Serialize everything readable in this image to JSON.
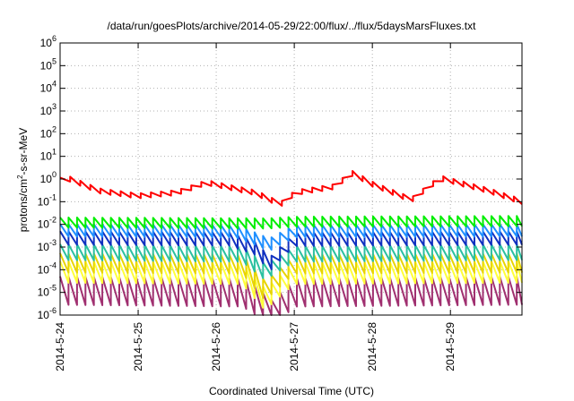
{
  "chart_data": {
    "type": "line",
    "title": "/data/run/goesPlots/archive/2014-05-29/22:00/flux/../flux/5daysMarsFluxes.txt",
    "xlabel": "Coordinated Universal Time (UTC)",
    "ylabel": "protons/cm2-s-sr-MeV",
    "ylabel_parts": [
      "protons/cm",
      "2",
      "-s-sr-MeV"
    ],
    "y_scale": "log",
    "ylim": [
      1e-06,
      1000000.0
    ],
    "y_ticks": [
      {
        "base": "10",
        "exp": "6"
      },
      {
        "base": "10",
        "exp": "5"
      },
      {
        "base": "10",
        "exp": "4"
      },
      {
        "base": "10",
        "exp": "3"
      },
      {
        "base": "10",
        "exp": "2"
      },
      {
        "base": "10",
        "exp": "1"
      },
      {
        "base": "10",
        "exp": "0"
      },
      {
        "base": "10",
        "exp": "-1"
      },
      {
        "base": "10",
        "exp": "-2"
      },
      {
        "base": "10",
        "exp": "-3"
      },
      {
        "base": "10",
        "exp": "-4"
      },
      {
        "base": "10",
        "exp": "-5"
      },
      {
        "base": "10",
        "exp": "-6"
      }
    ],
    "xlim": [
      "2014-05-24 00:00",
      "2014-05-29 22:00"
    ],
    "x_ticks": [
      "2014-5-24",
      "2014-5-25",
      "2014-5-26",
      "2014-5-27",
      "2014-5-28",
      "2014-5-29"
    ],
    "grid": true,
    "series": [
      {
        "color": "#ff0000",
        "period_hours": 3.1,
        "anchors": [
          [
            "2014-05-24 00:00",
            0.9
          ],
          [
            "2014-05-24 03:00",
            1.0
          ],
          [
            "2014-05-24 12:00",
            0.3
          ],
          [
            "2014-05-25 00:00",
            0.18
          ],
          [
            "2014-05-25 12:00",
            0.25
          ],
          [
            "2014-05-25 21:00",
            0.7
          ],
          [
            "2014-05-26 12:00",
            0.25
          ],
          [
            "2014-05-26 18:00",
            0.1
          ],
          [
            "2014-05-26 21:00",
            0.08
          ],
          [
            "2014-05-27 00:00",
            0.25
          ],
          [
            "2014-05-27 12:00",
            0.45
          ],
          [
            "2014-05-27 18:00",
            1.8
          ],
          [
            "2014-05-28 00:00",
            0.6
          ],
          [
            "2014-05-28 12:00",
            0.12
          ],
          [
            "2014-05-28 21:00",
            1.1
          ],
          [
            "2014-05-29 12:00",
            0.3
          ],
          [
            "2014-05-29 22:00",
            0.1
          ]
        ],
        "sawtooth_amplitude": 0.22
      },
      {
        "color": "#00ee00",
        "period_hours": 2.6,
        "anchors": [
          [
            "2014-05-24 00:00",
            0.012
          ],
          [
            "2014-05-26 16:00",
            0.011
          ],
          [
            "2014-05-27 00:00",
            0.013
          ],
          [
            "2014-05-29 22:00",
            0.014
          ]
        ],
        "sawtooth_amplitude": 0.45
      },
      {
        "color": "#1f8fff",
        "period_hours": 2.6,
        "anchors": [
          [
            "2014-05-24 00:00",
            0.0055
          ],
          [
            "2014-05-26 06:00",
            0.005
          ],
          [
            "2014-05-26 14:00",
            0.0018
          ],
          [
            "2014-05-26 16:00",
            0.0012
          ],
          [
            "2014-05-27 00:00",
            0.005
          ],
          [
            "2014-05-29 22:00",
            0.0055
          ]
        ],
        "sawtooth_amplitude": 0.55
      },
      {
        "color": "#1030c0",
        "period_hours": 2.6,
        "anchors": [
          [
            "2014-05-24 00:00",
            0.0025
          ],
          [
            "2014-05-26 04:00",
            0.0023
          ],
          [
            "2014-05-26 12:00",
            0.0009
          ],
          [
            "2014-05-26 15:00",
            0.0003
          ],
          [
            "2014-05-26 16:00",
            0.00015
          ],
          [
            "2014-05-27 00:00",
            0.0022
          ],
          [
            "2014-05-29 22:00",
            0.0025
          ]
        ],
        "sawtooth_amplitude": 0.6
      },
      {
        "color": "#2bc0a0",
        "period_hours": 2.6,
        "anchors": [
          [
            "2014-05-24 00:00",
            0.0006
          ],
          [
            "2014-05-26 08:00",
            0.0005
          ],
          [
            "2014-05-26 15:00",
            8e-05
          ],
          [
            "2014-05-27 00:00",
            0.0005
          ],
          [
            "2014-05-29 22:00",
            0.0006
          ]
        ],
        "sawtooth_amplitude": 0.7
      },
      {
        "color": "#e8d400",
        "period_hours": 2.6,
        "anchors": [
          [
            "2014-05-24 00:00",
            0.0002
          ],
          [
            "2014-05-26 08:00",
            0.00018
          ],
          [
            "2014-05-26 15:00",
            1.2e-05
          ],
          [
            "2014-05-27 00:00",
            0.00018
          ],
          [
            "2014-05-29 22:00",
            0.0002
          ]
        ],
        "sawtooth_amplitude": 0.85
      },
      {
        "color": "#ffff3a",
        "period_hours": 2.6,
        "anchors": [
          [
            "2014-05-24 00:00",
            8e-05
          ],
          [
            "2014-05-26 08:00",
            7e-05
          ],
          [
            "2014-05-26 15:00",
            5e-06
          ],
          [
            "2014-05-27 00:00",
            7e-05
          ],
          [
            "2014-05-29 22:00",
            8e-05
          ]
        ],
        "sawtooth_amplitude": 0.95
      },
      {
        "color": "#a03070",
        "period_hours": 2.6,
        "anchors": [
          [
            "2014-05-24 00:00",
            1.2e-05
          ],
          [
            "2014-05-26 08:00",
            1e-05
          ],
          [
            "2014-05-26 14:00",
            3e-06
          ],
          [
            "2014-05-26 16:00",
            8e-07
          ],
          [
            "2014-05-27 00:00",
            1e-05
          ],
          [
            "2014-05-29 22:00",
            1.2e-05
          ]
        ],
        "sawtooth_amplitude": 1.25
      }
    ]
  }
}
